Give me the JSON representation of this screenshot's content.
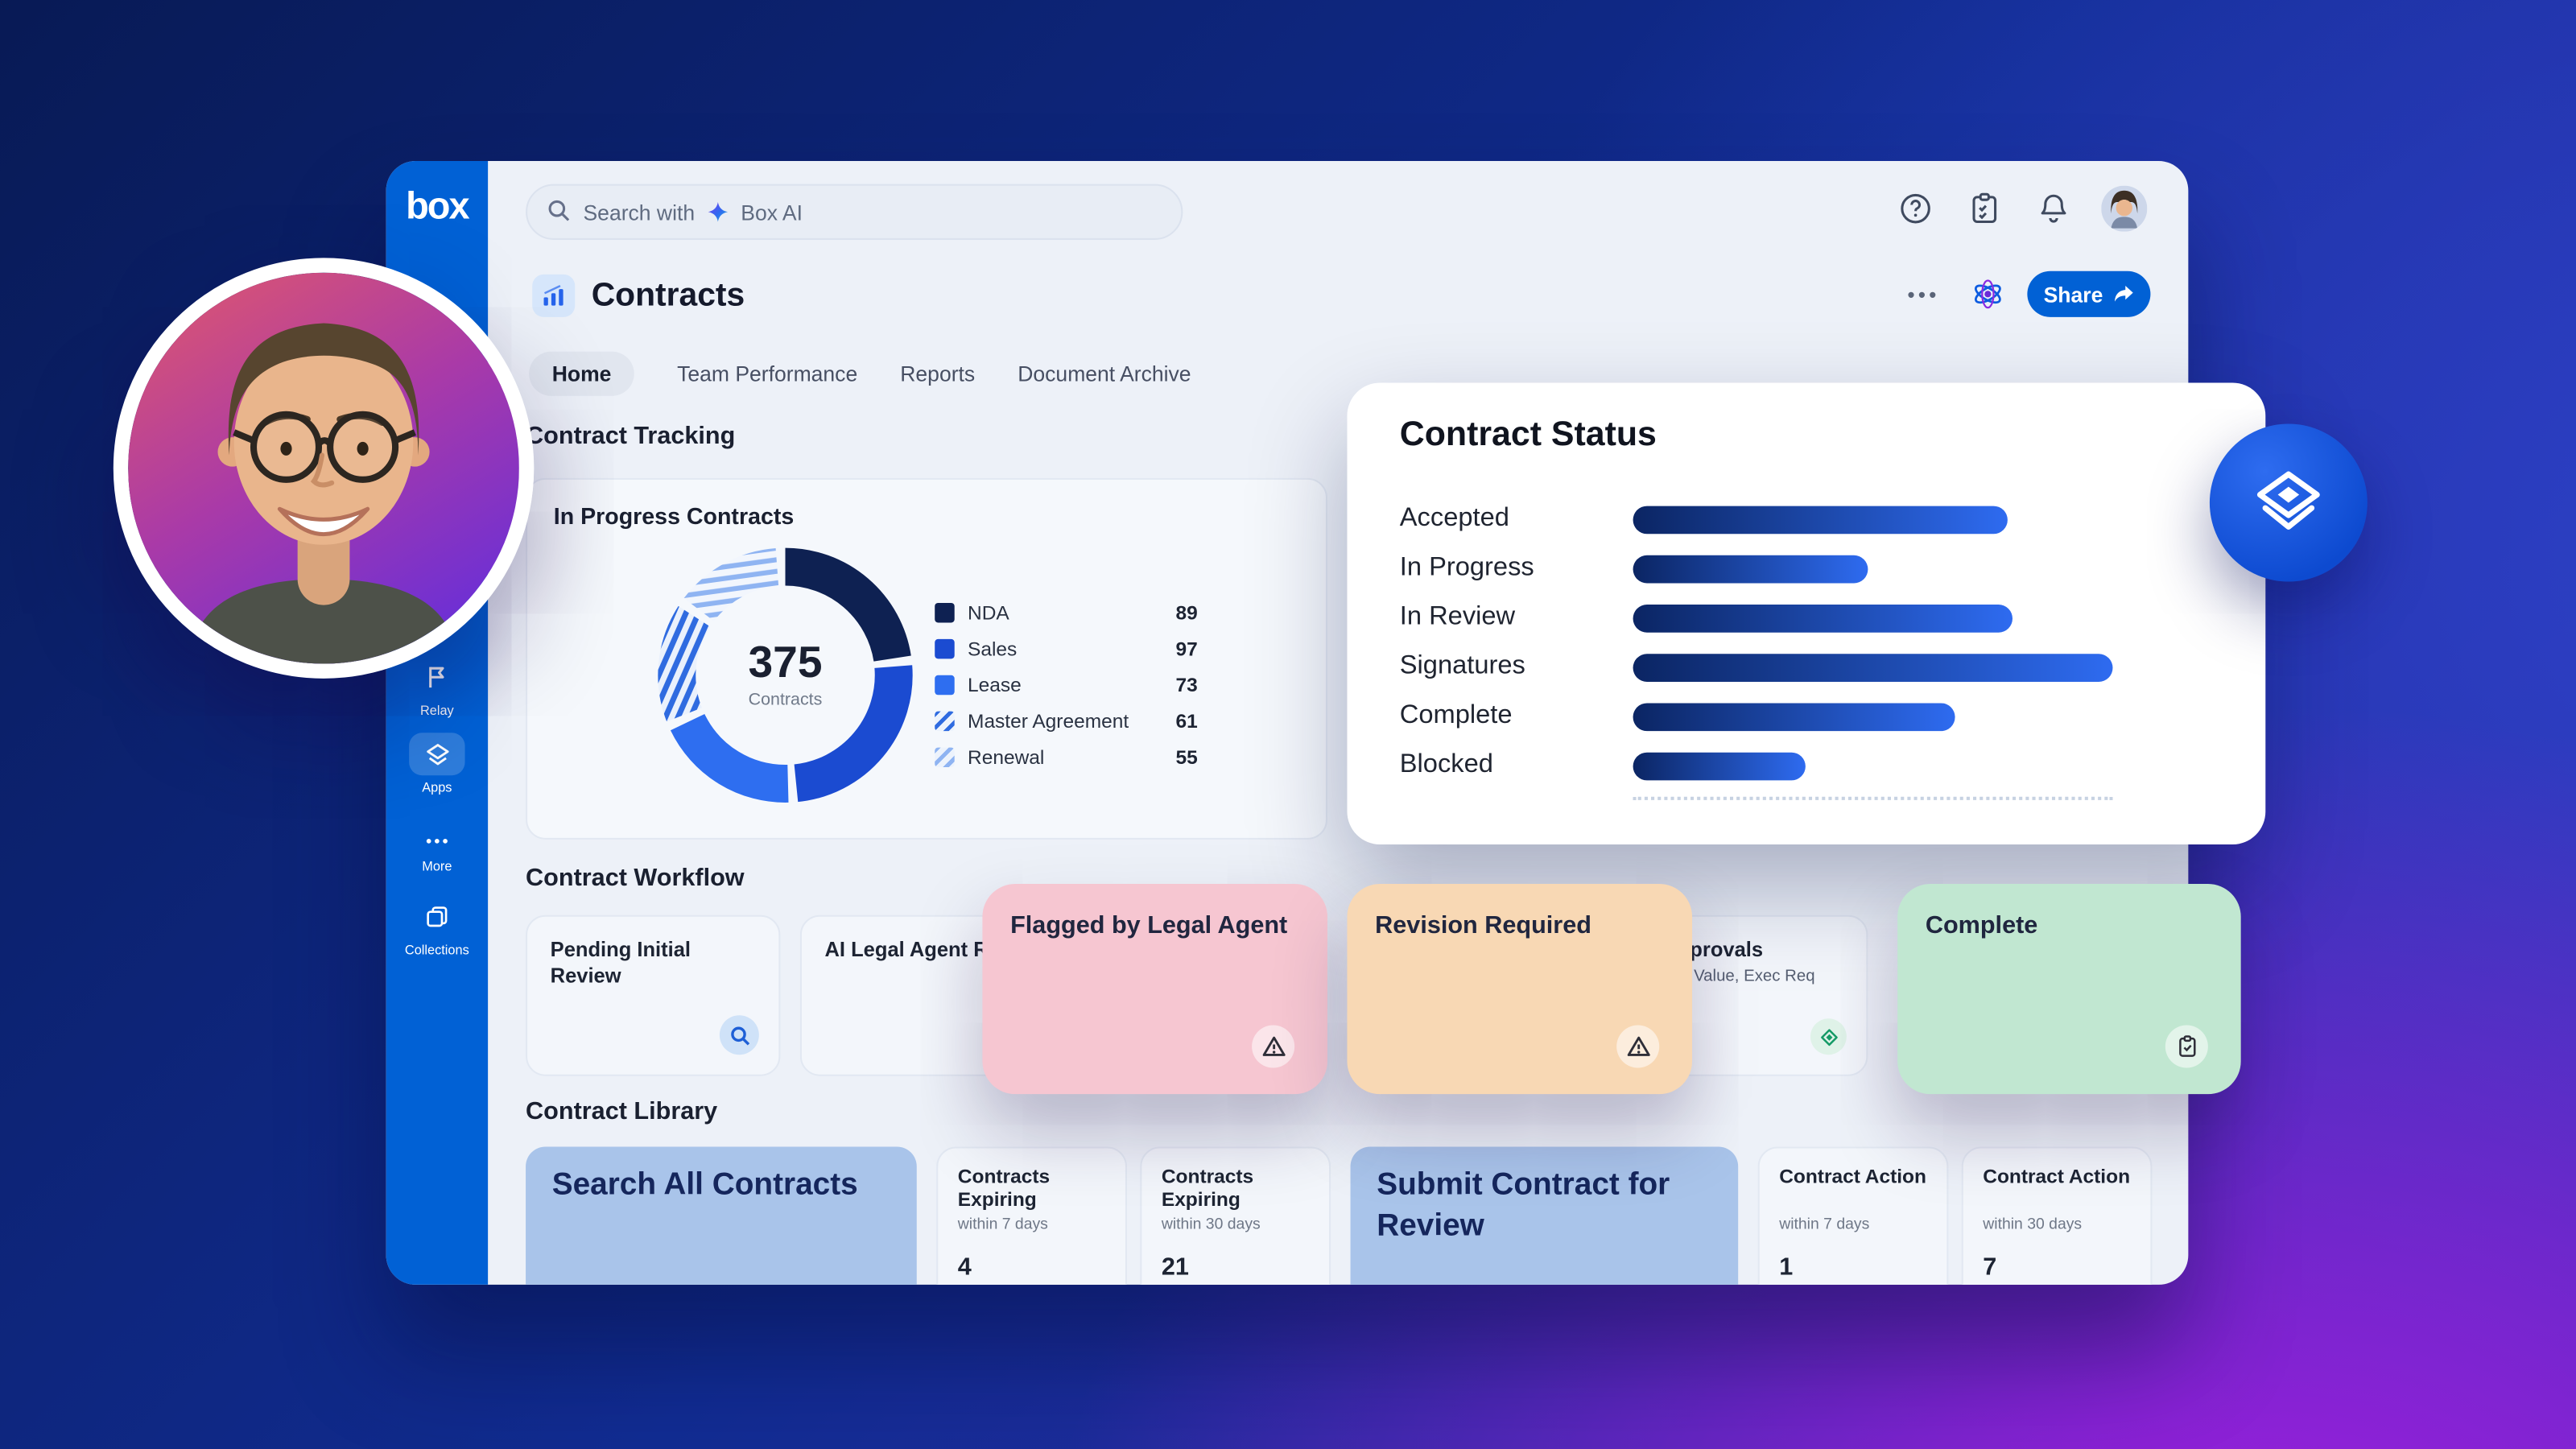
{
  "brand": {
    "box_blue": "#0161d5"
  },
  "sidebar": {
    "logo_text": "box",
    "items": [
      {
        "label": "Relay",
        "icon": "relay-flag-icon"
      },
      {
        "label": "Apps",
        "icon": "apps-diamond-icon",
        "active": true
      },
      {
        "label": "More",
        "icon": "more-dots-icon"
      },
      {
        "label": "Collections",
        "icon": "collections-icon"
      }
    ]
  },
  "topbar": {
    "search": {
      "prefix": "Search with",
      "brand": "Box AI",
      "icon": "box-ai-spark-icon"
    },
    "icons": [
      "help-icon",
      "checklist-icon",
      "notifications-bell-icon",
      "user-avatar"
    ]
  },
  "header": {
    "app_icon": "contracts-chart-icon",
    "title": "Contracts",
    "more_label": "•••",
    "ai_icon": "box-ai-atom-icon",
    "share_label": "Share"
  },
  "tabs": {
    "items": [
      {
        "label": "Home",
        "active": true
      },
      {
        "label": "Team Performance",
        "active": false
      },
      {
        "label": "Reports",
        "active": false
      },
      {
        "label": "Document Archive",
        "active": false
      }
    ]
  },
  "tracking": {
    "heading": "Contract Tracking",
    "card_title": "In Progress Contracts",
    "donut": {
      "center_value": "375",
      "center_label": "Contracts",
      "segments": [
        {
          "label": "NDA",
          "value": 89,
          "swatch": "#0e2152",
          "pattern": "solid"
        },
        {
          "label": "Sales",
          "value": 97,
          "swatch": "#1b4bd1",
          "pattern": "solid"
        },
        {
          "label": "Lease",
          "value": 73,
          "swatch": "#2e6ef0",
          "pattern": "solid"
        },
        {
          "label": "Master Agreement",
          "value": 61,
          "swatch": "#2f6be0",
          "pattern": "hatch"
        },
        {
          "label": "Renewal",
          "value": 55,
          "swatch": "#8fb4f2",
          "pattern": "hatch-light"
        }
      ]
    }
  },
  "status_card": {
    "title": "Contract Status",
    "bar_gradient": [
      "#0b2563",
      "#2e6bf0"
    ],
    "rows": [
      {
        "label": "Accepted",
        "pct": 78
      },
      {
        "label": "In Progress",
        "pct": 49
      },
      {
        "label": "In Review",
        "pct": 79
      },
      {
        "label": "Signatures",
        "pct": 100
      },
      {
        "label": "Complete",
        "pct": 67
      },
      {
        "label": "Blocked",
        "pct": 36
      }
    ]
  },
  "workflow": {
    "heading": "Contract Workflow",
    "cards": {
      "pending": {
        "title": "Pending Initial Review",
        "icon": "search-chip-icon"
      },
      "ai_review": {
        "title": "AI Legal Agent Review"
      },
      "flagged": {
        "title": "Flagged by Legal Agent",
        "bg": "#f6c6d1",
        "icon": "warning-triangle-icon"
      },
      "revision": {
        "title": "Revision Required",
        "bg": "#f8d8b4",
        "icon": "warning-triangle-icon"
      },
      "approvals": {
        "title": "Approvals",
        "subtitle": "Value, Exec Req",
        "icon": "diamond-pen-icon"
      },
      "complete": {
        "title": "Complete",
        "bg": "#c1e7d1",
        "icon": "clipboard-check-icon"
      }
    }
  },
  "library": {
    "heading": "Contract Library",
    "search_all": {
      "title": "Search All Contracts"
    },
    "submit": {
      "title": "Submit Contract for Review"
    },
    "stats": [
      {
        "title": "Contracts Expiring",
        "subtitle": "within 7 days",
        "value": "4"
      },
      {
        "title": "Contracts Expiring",
        "subtitle": "within 30 days",
        "value": "21"
      },
      {
        "title": "Contract Action",
        "subtitle": "within 7 days",
        "value": "1"
      },
      {
        "title": "Contract Action",
        "subtitle": "within 30 days",
        "value": "7"
      }
    ]
  },
  "overlays": {
    "badge_icon": "layers-diamond-icon",
    "photo": "person-portrait"
  },
  "chart_data": [
    {
      "type": "pie",
      "variant": "donut",
      "title": "In Progress Contracts",
      "center_label": "375 Contracts",
      "categories": [
        "NDA",
        "Sales",
        "Lease",
        "Master Agreement",
        "Renewal"
      ],
      "values": [
        89,
        97,
        73,
        61,
        55
      ],
      "total": 375,
      "legend_position": "right"
    },
    {
      "type": "bar",
      "orientation": "horizontal",
      "title": "Contract Status",
      "categories": [
        "Accepted",
        "In Progress",
        "In Review",
        "Signatures",
        "Complete",
        "Blocked"
      ],
      "values": [
        78,
        49,
        79,
        100,
        67,
        36
      ],
      "value_unit": "percent-of-longest-bar"
    }
  ]
}
